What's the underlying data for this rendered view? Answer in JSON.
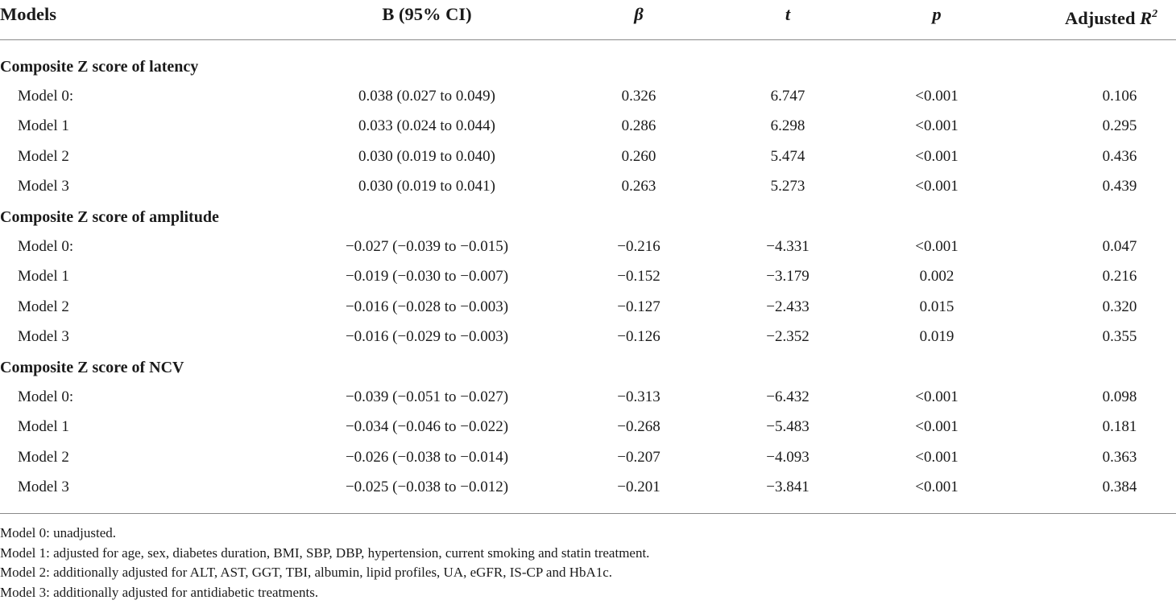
{
  "header": {
    "models": "Models",
    "b_ci": "B (95% CI)",
    "beta": "β",
    "t": "t",
    "p": "p",
    "adjusted": "Adjusted",
    "r": "R",
    "r_sup": "2"
  },
  "sections": [
    {
      "title": "Composite Z score of latency",
      "rows": [
        {
          "model": "Model 0:",
          "b": "0.038 (0.027 to 0.049)",
          "beta": "0.326",
          "t": "6.747",
          "p": "<0.001",
          "r2": "0.106"
        },
        {
          "model": "Model 1",
          "b": "0.033 (0.024 to 0.044)",
          "beta": "0.286",
          "t": "6.298",
          "p": "<0.001",
          "r2": "0.295"
        },
        {
          "model": "Model 2",
          "b": "0.030 (0.019 to 0.040)",
          "beta": "0.260",
          "t": "5.474",
          "p": "<0.001",
          "r2": "0.436"
        },
        {
          "model": "Model 3",
          "b": "0.030 (0.019 to 0.041)",
          "beta": "0.263",
          "t": "5.273",
          "p": "<0.001",
          "r2": "0.439"
        }
      ]
    },
    {
      "title": "Composite Z score of amplitude",
      "rows": [
        {
          "model": "Model 0:",
          "b": "−0.027 (−0.039 to −0.015)",
          "beta": "−0.216",
          "t": "−4.331",
          "p": "<0.001",
          "r2": "0.047"
        },
        {
          "model": "Model 1",
          "b": "−0.019 (−0.030 to −0.007)",
          "beta": "−0.152",
          "t": "−3.179",
          "p": "0.002",
          "r2": "0.216"
        },
        {
          "model": "Model 2",
          "b": "−0.016 (−0.028 to −0.003)",
          "beta": "−0.127",
          "t": "−2.433",
          "p": "0.015",
          "r2": "0.320"
        },
        {
          "model": "Model 3",
          "b": "−0.016 (−0.029 to −0.003)",
          "beta": "−0.126",
          "t": "−2.352",
          "p": "0.019",
          "r2": "0.355"
        }
      ]
    },
    {
      "title": "Composite Z score of NCV",
      "rows": [
        {
          "model": "Model 0:",
          "b": "−0.039 (−0.051 to −0.027)",
          "beta": "−0.313",
          "t": "−6.432",
          "p": "<0.001",
          "r2": "0.098"
        },
        {
          "model": "Model 1",
          "b": "−0.034 (−0.046 to −0.022)",
          "beta": "−0.268",
          "t": "−5.483",
          "p": "<0.001",
          "r2": "0.181"
        },
        {
          "model": "Model 2",
          "b": "−0.026 (−0.038 to −0.014)",
          "beta": "−0.207",
          "t": "−4.093",
          "p": "<0.001",
          "r2": "0.363"
        },
        {
          "model": "Model 3",
          "b": "−0.025 (−0.038 to −0.012)",
          "beta": "−0.201",
          "t": "−3.841",
          "p": "<0.001",
          "r2": "0.384"
        }
      ]
    }
  ],
  "notes": [
    "Model 0: unadjusted.",
    "Model 1: adjusted for age, sex, diabetes duration, BMI, SBP, DBP, hypertension, current smoking and statin treatment.",
    "Model 2: additionally adjusted for ALT, AST, GGT, TBI, albumin, lipid profiles, UA, eGFR, IS-CP and HbA1c.",
    "Model 3: additionally adjusted for antidiabetic treatments."
  ]
}
